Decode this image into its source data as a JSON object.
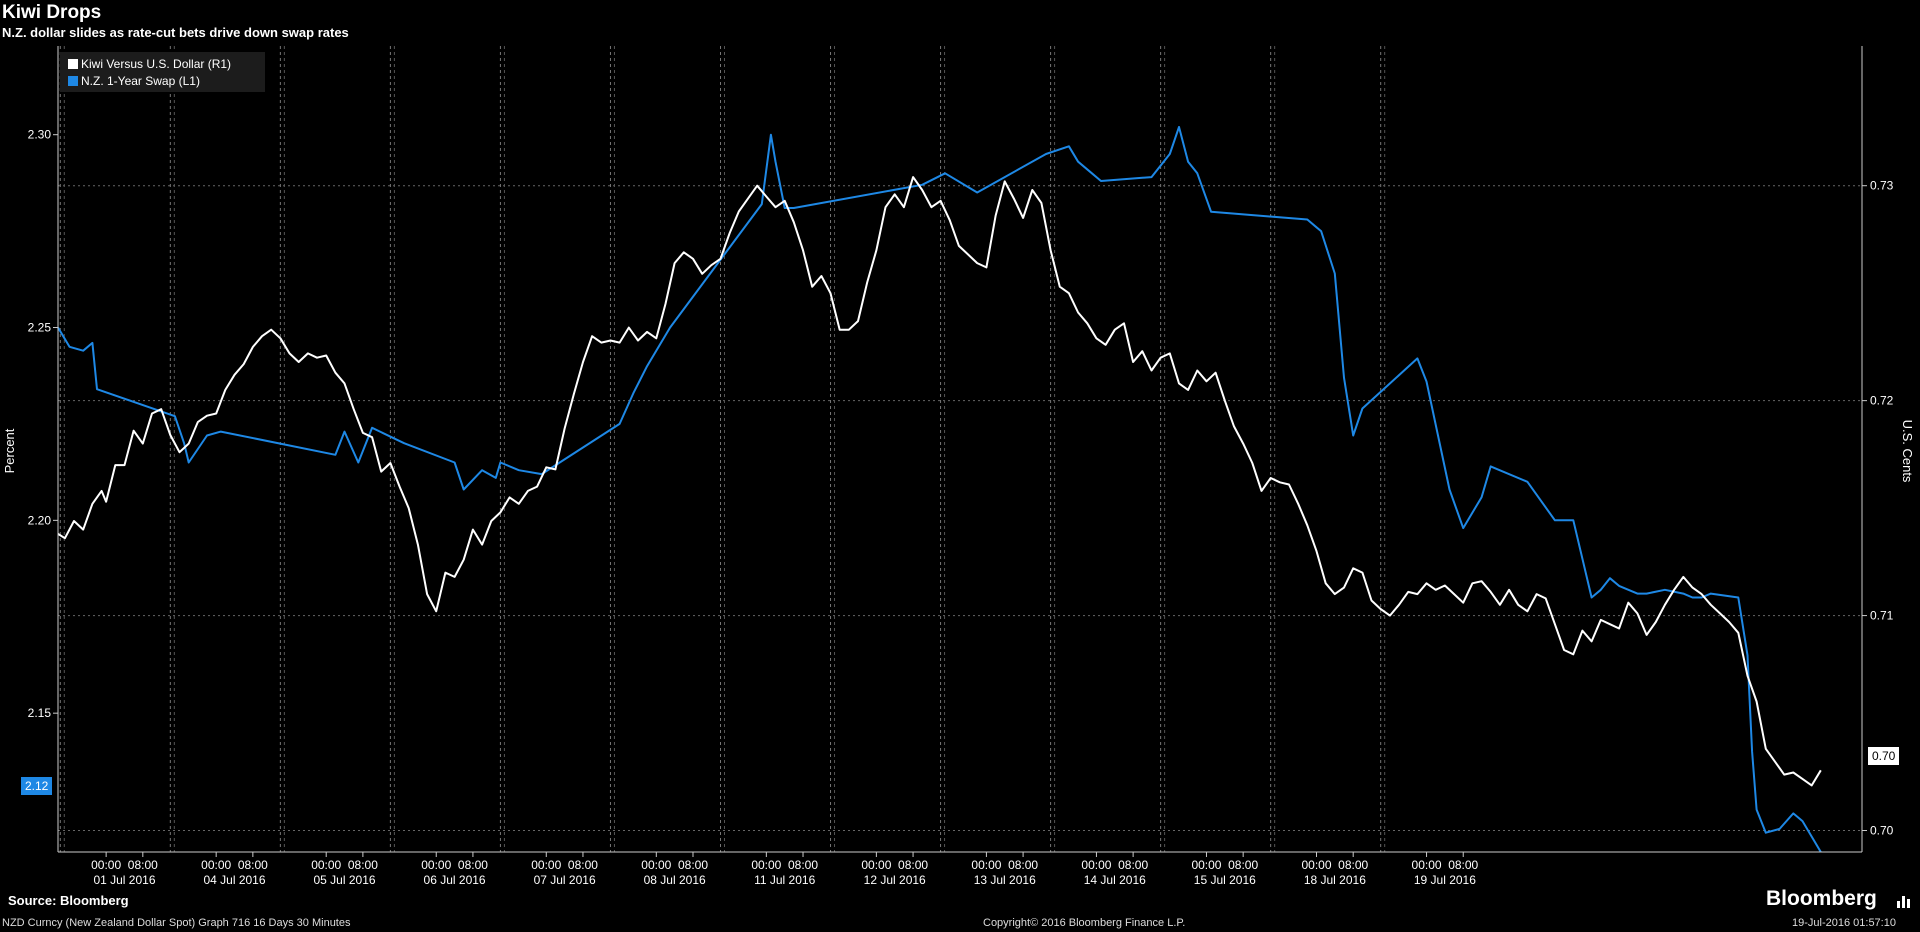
{
  "header": {
    "title": "Kiwi Drops",
    "subtitle": "N.Z. dollar slides as rate-cut bets drive down swap rates"
  },
  "footer": {
    "source": "Source: Bloomberg",
    "description": "NZD Curncy (New Zealand Dollar Spot) Graph 716 16 Days 30 Minutes",
    "copyright": "Copyright© 2016 Bloomberg Finance L.P.",
    "timestamp": "19-Jul-2016 01:57:10",
    "brand": "Bloomberg"
  },
  "legend": {
    "kiwi": "Kiwi Versus U.S. Dollar  (R1)",
    "swap": "N.Z. 1-Year Swap (L1)"
  },
  "last_values": {
    "left": "2.12",
    "right": "0.70"
  },
  "colors": {
    "kiwi": "#ffffff",
    "swap": "#1e88e5",
    "background": "#000000"
  },
  "chart_data": {
    "type": "line",
    "ylabel_left": "Percent",
    "ylabel_right": "U.S. Cents",
    "yticks_left": [
      "2.15",
      "2.20",
      "2.25",
      "2.30"
    ],
    "yticks_right": [
      "0.70",
      "0.71",
      "0.72",
      "0.73"
    ],
    "ylim_left": [
      2.114,
      2.323
    ],
    "ylim_right": [
      0.699,
      0.7365
    ],
    "xlim": [
      -10.5,
      376
    ],
    "time_labels": [
      "00:00",
      "08:00"
    ],
    "days": [
      {
        "label": "01 Jul 2016",
        "x": 0
      },
      {
        "label": "04 Jul 2016",
        "x": 24
      },
      {
        "label": "05 Jul 2016",
        "x": 48
      },
      {
        "label": "06 Jul 2016",
        "x": 72
      },
      {
        "label": "07 Jul 2016",
        "x": 96
      },
      {
        "label": "08 Jul 2016",
        "x": 120
      },
      {
        "label": "11 Jul 2016",
        "x": 144
      },
      {
        "label": "12 Jul 2016",
        "x": 168
      },
      {
        "label": "13 Jul 2016",
        "x": 192
      },
      {
        "label": "14 Jul 2016",
        "x": 216
      },
      {
        "label": "15 Jul 2016",
        "x": 240
      },
      {
        "label": "18 Jul 2016",
        "x": 264
      },
      {
        "label": "19 Jul 2016",
        "x": 288
      }
    ],
    "series": [
      {
        "name": "N.Z. 1-Year Swap (L1)",
        "axis": "left",
        "points": [
          [
            -10.5,
            2.25
          ],
          [
            -8,
            2.245
          ],
          [
            -5,
            2.244
          ],
          [
            -3,
            2.246
          ],
          [
            -2,
            2.234
          ],
          [
            15,
            2.227
          ],
          [
            17,
            2.22
          ],
          [
            18,
            2.215
          ],
          [
            22,
            2.222
          ],
          [
            25,
            2.223
          ],
          [
            50,
            2.217
          ],
          [
            52,
            2.223
          ],
          [
            55,
            2.215
          ],
          [
            58,
            2.224
          ],
          [
            65,
            2.22
          ],
          [
            76,
            2.215
          ],
          [
            78,
            2.208
          ],
          [
            82,
            2.213
          ],
          [
            85,
            2.211
          ],
          [
            86,
            2.215
          ],
          [
            90,
            2.213
          ],
          [
            95,
            2.212
          ],
          [
            112,
            2.225
          ],
          [
            115,
            2.233
          ],
          [
            118,
            2.24
          ],
          [
            123,
            2.25
          ],
          [
            143,
            2.282
          ],
          [
            145,
            2.3
          ],
          [
            146,
            2.293
          ],
          [
            148,
            2.281
          ],
          [
            150,
            2.281
          ],
          [
            178,
            2.287
          ],
          [
            183,
            2.29
          ],
          [
            190,
            2.285
          ],
          [
            205,
            2.295
          ],
          [
            210,
            2.297
          ],
          [
            212,
            2.293
          ],
          [
            215,
            2.29
          ],
          [
            217,
            2.288
          ],
          [
            228,
            2.289
          ],
          [
            232,
            2.295
          ],
          [
            234,
            2.302
          ],
          [
            236,
            2.293
          ],
          [
            238,
            2.29
          ],
          [
            241,
            2.28
          ],
          [
            262,
            2.278
          ],
          [
            264,
            2.276
          ],
          [
            265,
            2.275
          ],
          [
            268,
            2.264
          ],
          [
            270,
            2.237
          ],
          [
            272,
            2.222
          ],
          [
            274,
            2.229
          ],
          [
            286,
            2.242
          ],
          [
            288,
            2.236
          ],
          [
            293,
            2.208
          ],
          [
            296,
            2.198
          ],
          [
            300,
            2.206
          ],
          [
            302,
            2.214
          ],
          [
            310,
            2.21
          ],
          [
            316,
            2.2
          ],
          [
            320,
            2.2
          ],
          [
            324,
            2.18
          ],
          [
            326,
            2.182
          ],
          [
            328,
            2.185
          ],
          [
            330,
            2.183
          ],
          [
            334,
            2.181
          ],
          [
            336,
            2.181
          ],
          [
            340,
            2.182
          ],
          [
            344,
            2.181
          ],
          [
            346,
            2.18
          ],
          [
            348,
            2.18
          ],
          [
            350,
            2.181
          ],
          [
            356,
            2.18
          ],
          [
            358,
            2.165
          ],
          [
            359,
            2.14
          ],
          [
            360,
            2.125
          ],
          [
            362,
            2.119
          ],
          [
            365,
            2.12
          ],
          [
            368,
            2.124
          ],
          [
            370,
            2.122
          ],
          [
            372,
            2.118
          ],
          [
            374,
            2.114
          ]
        ]
      },
      {
        "name": "Kiwi Versus U.S. Dollar  (R1)",
        "axis": "right",
        "points": [
          [
            -10.5,
            0.7138
          ],
          [
            -9,
            0.7136
          ],
          [
            -7,
            0.7144
          ],
          [
            -5,
            0.714
          ],
          [
            -3,
            0.7152
          ],
          [
            -1,
            0.7158
          ],
          [
            0,
            0.7153
          ],
          [
            2,
            0.717
          ],
          [
            4,
            0.717
          ],
          [
            6,
            0.7186
          ],
          [
            8,
            0.718
          ],
          [
            10,
            0.7194
          ],
          [
            12,
            0.7196
          ],
          [
            14,
            0.7184
          ],
          [
            16,
            0.7176
          ],
          [
            18,
            0.718
          ],
          [
            20,
            0.719
          ],
          [
            22,
            0.7193
          ],
          [
            24,
            0.7194
          ],
          [
            26,
            0.7205
          ],
          [
            28,
            0.7212
          ],
          [
            30,
            0.7217
          ],
          [
            32,
            0.7225
          ],
          [
            34,
            0.723
          ],
          [
            36,
            0.7233
          ],
          [
            38,
            0.7229
          ],
          [
            40,
            0.7222
          ],
          [
            42,
            0.7218
          ],
          [
            44,
            0.7222
          ],
          [
            46,
            0.722
          ],
          [
            48,
            0.7221
          ],
          [
            50,
            0.7213
          ],
          [
            52,
            0.7208
          ],
          [
            54,
            0.7196
          ],
          [
            56,
            0.7185
          ],
          [
            58,
            0.7183
          ],
          [
            60,
            0.7167
          ],
          [
            62,
            0.7171
          ],
          [
            64,
            0.716
          ],
          [
            66,
            0.715
          ],
          [
            68,
            0.7133
          ],
          [
            70,
            0.711
          ],
          [
            72,
            0.7102
          ],
          [
            74,
            0.712
          ],
          [
            76,
            0.7118
          ],
          [
            78,
            0.7126
          ],
          [
            80,
            0.714
          ],
          [
            82,
            0.7133
          ],
          [
            84,
            0.7144
          ],
          [
            86,
            0.7148
          ],
          [
            88,
            0.7155
          ],
          [
            90,
            0.7152
          ],
          [
            92,
            0.7158
          ],
          [
            94,
            0.716
          ],
          [
            96,
            0.7169
          ],
          [
            98,
            0.7168
          ],
          [
            100,
            0.7187
          ],
          [
            102,
            0.7203
          ],
          [
            104,
            0.7218
          ],
          [
            106,
            0.723
          ],
          [
            108,
            0.7227
          ],
          [
            110,
            0.7228
          ],
          [
            112,
            0.7227
          ],
          [
            114,
            0.7234
          ],
          [
            116,
            0.7228
          ],
          [
            118,
            0.7232
          ],
          [
            120,
            0.7229
          ],
          [
            122,
            0.7245
          ],
          [
            124,
            0.7264
          ],
          [
            126,
            0.7269
          ],
          [
            128,
            0.7266
          ],
          [
            130,
            0.7259
          ],
          [
            132,
            0.7263
          ],
          [
            134,
            0.7266
          ],
          [
            136,
            0.7278
          ],
          [
            138,
            0.7288
          ],
          [
            140,
            0.7294
          ],
          [
            142,
            0.73
          ],
          [
            144,
            0.7295
          ],
          [
            146,
            0.729
          ],
          [
            148,
            0.7293
          ],
          [
            150,
            0.7283
          ],
          [
            152,
            0.727
          ],
          [
            154,
            0.7253
          ],
          [
            156,
            0.7258
          ],
          [
            158,
            0.725
          ],
          [
            160,
            0.7233
          ],
          [
            162,
            0.7233
          ],
          [
            164,
            0.7237
          ],
          [
            166,
            0.7255
          ],
          [
            168,
            0.727
          ],
          [
            170,
            0.729
          ],
          [
            172,
            0.7296
          ],
          [
            174,
            0.729
          ],
          [
            176,
            0.7304
          ],
          [
            178,
            0.7298
          ],
          [
            180,
            0.729
          ],
          [
            182,
            0.7293
          ],
          [
            184,
            0.7284
          ],
          [
            186,
            0.7272
          ],
          [
            188,
            0.7268
          ],
          [
            190,
            0.7264
          ],
          [
            192,
            0.7262
          ],
          [
            194,
            0.7286
          ],
          [
            196,
            0.7302
          ],
          [
            198,
            0.7294
          ],
          [
            200,
            0.7285
          ],
          [
            202,
            0.7298
          ],
          [
            204,
            0.7292
          ],
          [
            206,
            0.727
          ],
          [
            208,
            0.7253
          ],
          [
            210,
            0.725
          ],
          [
            212,
            0.7241
          ],
          [
            214,
            0.7236
          ],
          [
            216,
            0.7229
          ],
          [
            218,
            0.7226
          ],
          [
            220,
            0.7233
          ],
          [
            222,
            0.7236
          ],
          [
            224,
            0.7218
          ],
          [
            226,
            0.7223
          ],
          [
            228,
            0.7214
          ],
          [
            230,
            0.722
          ],
          [
            232,
            0.7222
          ],
          [
            234,
            0.7208
          ],
          [
            236,
            0.7205
          ],
          [
            238,
            0.7214
          ],
          [
            240,
            0.7209
          ],
          [
            242,
            0.7213
          ],
          [
            244,
            0.72
          ],
          [
            246,
            0.7188
          ],
          [
            248,
            0.718
          ],
          [
            250,
            0.7171
          ],
          [
            252,
            0.7158
          ],
          [
            254,
            0.7164
          ],
          [
            256,
            0.7162
          ],
          [
            258,
            0.7161
          ],
          [
            260,
            0.7152
          ],
          [
            262,
            0.7142
          ],
          [
            264,
            0.713
          ],
          [
            266,
            0.7115
          ],
          [
            268,
            0.711
          ],
          [
            270,
            0.7113
          ],
          [
            272,
            0.7122
          ],
          [
            274,
            0.712
          ],
          [
            276,
            0.7107
          ],
          [
            278,
            0.7103
          ],
          [
            280,
            0.71
          ],
          [
            282,
            0.7105
          ],
          [
            284,
            0.7111
          ],
          [
            286,
            0.711
          ],
          [
            288,
            0.7115
          ],
          [
            290,
            0.7112
          ],
          [
            292,
            0.7114
          ],
          [
            294,
            0.711
          ],
          [
            296,
            0.7106
          ],
          [
            298,
            0.7115
          ],
          [
            300,
            0.7116
          ],
          [
            302,
            0.7111
          ],
          [
            304,
            0.7105
          ],
          [
            306,
            0.7112
          ],
          [
            308,
            0.7105
          ],
          [
            310,
            0.7102
          ],
          [
            312,
            0.711
          ],
          [
            314,
            0.7108
          ],
          [
            316,
            0.7096
          ],
          [
            318,
            0.7084
          ],
          [
            320,
            0.7082
          ],
          [
            322,
            0.7093
          ],
          [
            324,
            0.7088
          ],
          [
            326,
            0.7098
          ],
          [
            328,
            0.7096
          ],
          [
            330,
            0.7094
          ],
          [
            332,
            0.7106
          ],
          [
            334,
            0.7101
          ],
          [
            336,
            0.7091
          ],
          [
            338,
            0.7097
          ],
          [
            340,
            0.7105
          ],
          [
            342,
            0.7112
          ],
          [
            344,
            0.7118
          ],
          [
            346,
            0.7113
          ],
          [
            348,
            0.711
          ],
          [
            350,
            0.7105
          ],
          [
            352,
            0.7101
          ],
          [
            354,
            0.7097
          ],
          [
            356,
            0.7092
          ],
          [
            358,
            0.7072
          ],
          [
            360,
            0.706
          ],
          [
            362,
            0.7038
          ],
          [
            364,
            0.7032
          ],
          [
            366,
            0.7026
          ],
          [
            368,
            0.7027
          ],
          [
            370,
            0.7024
          ],
          [
            372,
            0.7021
          ],
          [
            374,
            0.7028
          ]
        ]
      }
    ]
  }
}
